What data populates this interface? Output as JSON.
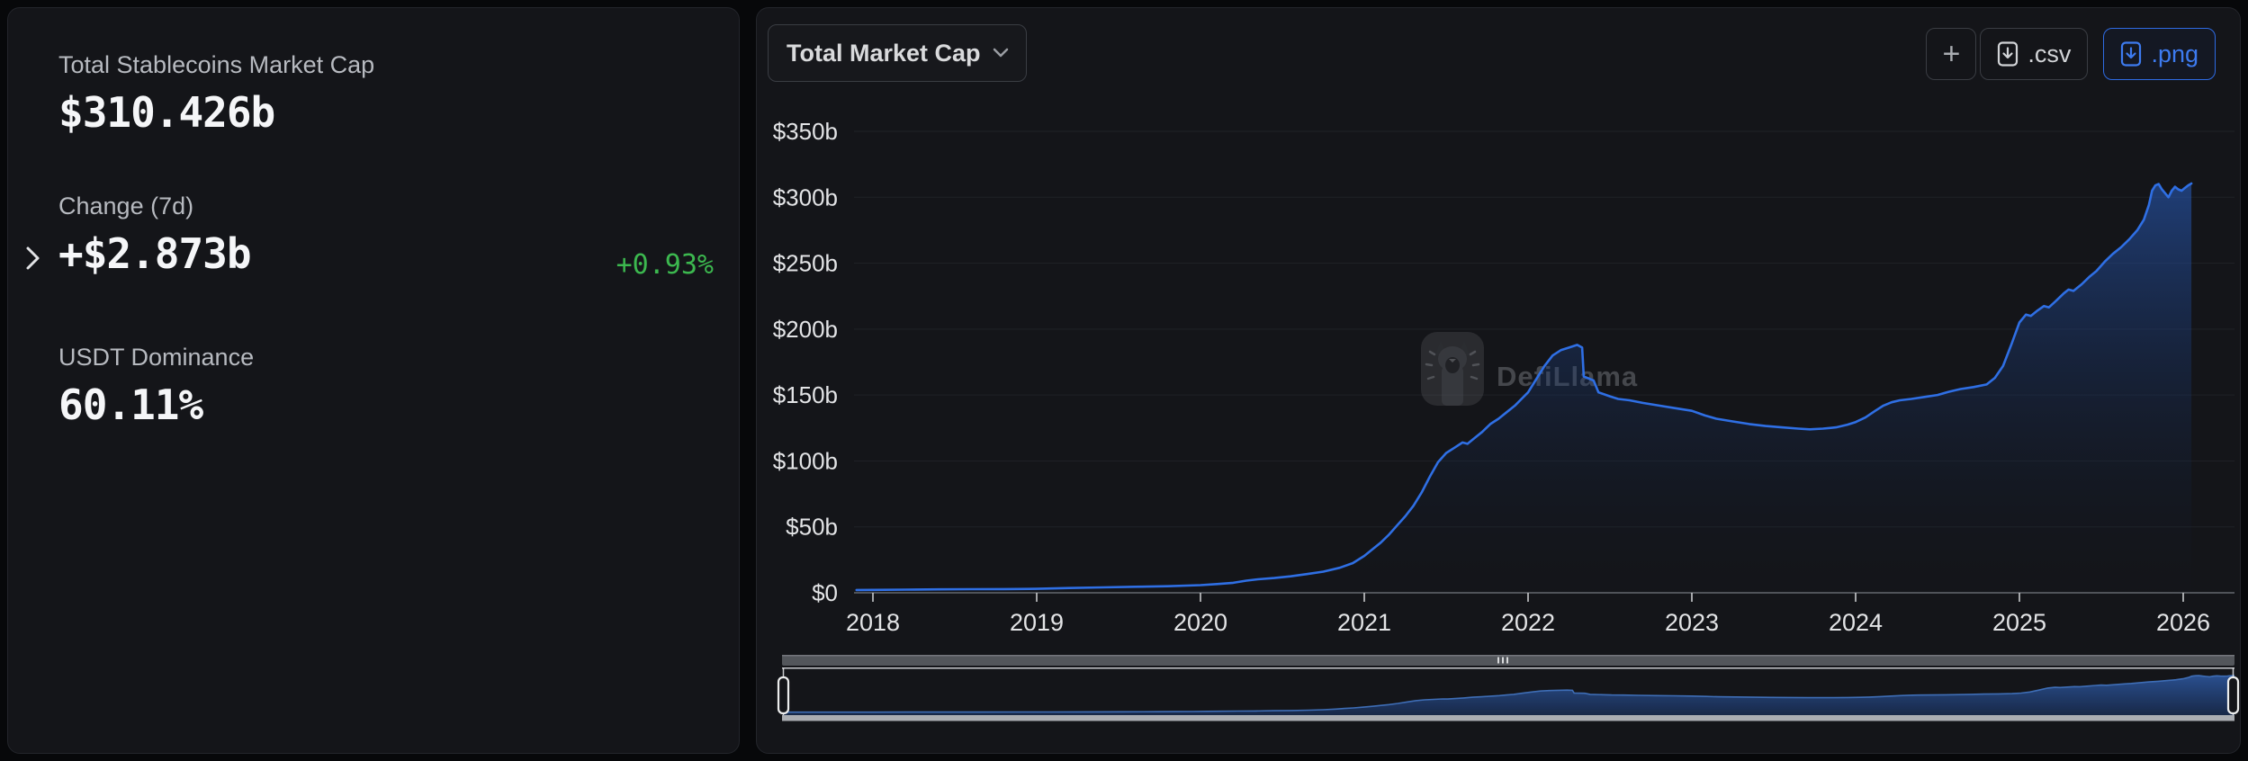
{
  "left_panel": {
    "stats": [
      {
        "label": "Total Stablecoins Market Cap",
        "value": "$310.426b"
      },
      {
        "label": "Change (7d)",
        "value": "+$2.873b",
        "pct": "+0.93%"
      },
      {
        "label": "USDT Dominance",
        "value": "60.11%"
      }
    ]
  },
  "toolbar": {
    "metric_dropdown": "Total Market Cap",
    "add_button": "+",
    "csv_button": ".csv",
    "png_button": ".png"
  },
  "colors": {
    "line": "#2f6fe4",
    "accent_blue": "#3d7bf0",
    "positive_green": "#3cb84f",
    "grid": "#1f2227",
    "axis": "#505359",
    "tick": "#c8cacd",
    "axis_label": "#e3e4e6"
  },
  "chart_data": {
    "type": "area",
    "title": "Total Market Cap",
    "series_name": "Total Stablecoins Market Cap ($b)",
    "watermark": "DefiLlama",
    "ylim": [
      0,
      350
    ],
    "xlim": [
      2017.9,
      2026.31
    ],
    "grid": true,
    "legend": "none",
    "ylabels": [
      "$0",
      "$50b",
      "$100b",
      "$150b",
      "$200b",
      "$250b",
      "$300b",
      "$350b"
    ],
    "yticks": [
      0,
      50,
      100,
      150,
      200,
      250,
      300,
      350
    ],
    "xlabels": [
      "2018",
      "2019",
      "2020",
      "2021",
      "2022",
      "2023",
      "2024",
      "2025",
      "2026"
    ],
    "xticks": [
      2018,
      2019,
      2020,
      2021,
      2022,
      2023,
      2024,
      2025,
      2026
    ],
    "x": [
      2017.9,
      2018.0,
      2018.2,
      2018.4,
      2018.6,
      2018.8,
      2019.0,
      2019.2,
      2019.4,
      2019.6,
      2019.8,
      2020.0,
      2020.1,
      2020.2,
      2020.28,
      2020.35,
      2020.45,
      2020.55,
      2020.65,
      2020.75,
      2020.85,
      2020.93,
      2021.0,
      2021.05,
      2021.1,
      2021.15,
      2021.2,
      2021.25,
      2021.3,
      2021.35,
      2021.4,
      2021.45,
      2021.5,
      2021.55,
      2021.6,
      2021.63,
      2021.67,
      2021.72,
      2021.77,
      2021.82,
      2021.87,
      2021.92,
      2021.96,
      2022.0,
      2022.05,
      2022.1,
      2022.15,
      2022.2,
      2022.25,
      2022.3,
      2022.33,
      2022.34,
      2022.4,
      2022.43,
      2022.5,
      2022.55,
      2022.62,
      2022.7,
      2022.8,
      2022.9,
      2023.0,
      2023.08,
      2023.15,
      2023.25,
      2023.35,
      2023.45,
      2023.55,
      2023.65,
      2023.72,
      2023.8,
      2023.88,
      2023.95,
      2024.0,
      2024.06,
      2024.12,
      2024.17,
      2024.22,
      2024.27,
      2024.34,
      2024.42,
      2024.5,
      2024.57,
      2024.64,
      2024.72,
      2024.8,
      2024.85,
      2024.9,
      2024.95,
      2025.0,
      2025.04,
      2025.07,
      2025.11,
      2025.15,
      2025.18,
      2025.22,
      2025.27,
      2025.3,
      2025.33,
      2025.38,
      2025.43,
      2025.47,
      2025.52,
      2025.57,
      2025.62,
      2025.67,
      2025.72,
      2025.76,
      2025.79,
      2025.81,
      2025.83,
      2025.85,
      2025.87,
      2025.89,
      2025.91,
      2025.93,
      2025.95,
      2025.97,
      2025.99,
      2026.01,
      2026.03,
      2026.05
    ],
    "values": [
      2.1,
      2.2,
      2.4,
      2.6,
      2.7,
      2.8,
      3.0,
      3.6,
      4.1,
      4.6,
      5.0,
      5.8,
      6.6,
      7.6,
      9.2,
      10.2,
      11.2,
      12.5,
      14.2,
      16.0,
      19.0,
      22.5,
      28,
      33,
      38,
      44,
      51,
      58,
      66,
      76,
      88,
      99,
      106,
      110,
      114,
      113,
      117,
      122,
      128,
      132,
      137,
      142,
      147,
      152,
      162,
      172,
      180,
      184,
      186,
      188,
      186,
      164,
      161,
      152,
      149,
      147,
      146,
      144,
      142,
      140,
      138,
      134.5,
      132,
      130,
      128,
      126.5,
      125.5,
      124.5,
      124,
      124.5,
      125.5,
      127.5,
      129.5,
      133,
      138,
      142,
      144.5,
      146,
      147,
      148.5,
      150,
      152.5,
      154.5,
      156,
      158,
      163,
      172,
      188,
      205,
      211,
      210,
      214,
      217.5,
      216.5,
      221,
      227,
      230,
      229,
      234,
      240,
      244,
      251,
      257,
      262,
      268,
      275,
      283,
      294,
      305,
      309,
      310,
      306,
      303,
      300,
      305,
      308,
      306,
      305,
      307,
      309,
      310.4
    ]
  }
}
